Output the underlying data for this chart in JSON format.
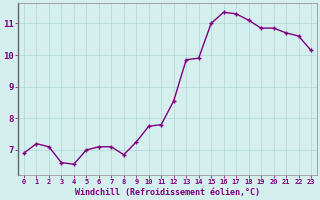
{
  "x": [
    0,
    1,
    2,
    3,
    4,
    5,
    6,
    7,
    8,
    9,
    10,
    11,
    12,
    13,
    14,
    15,
    16,
    17,
    18,
    19,
    20,
    21,
    22,
    23
  ],
  "y": [
    6.9,
    7.2,
    7.1,
    6.6,
    6.55,
    7.0,
    7.1,
    7.1,
    6.85,
    7.25,
    7.75,
    7.8,
    8.55,
    9.85,
    9.9,
    11.0,
    11.35,
    11.3,
    11.1,
    10.85,
    10.85,
    10.7,
    10.6,
    10.15
  ],
  "line_color": "#800080",
  "marker": "+",
  "marker_size": 3,
  "bg_color": "#d4efed",
  "grid_color": "#b0d8d4",
  "xlabel": "Windchill (Refroidissement éolien,°C)",
  "xlabel_color": "#800080",
  "ylabel_ticks": [
    7,
    8,
    9,
    10,
    11
  ],
  "xtick_labels": [
    "0",
    "1",
    "2",
    "3",
    "4",
    "5",
    "6",
    "7",
    "8",
    "9",
    "10",
    "11",
    "12",
    "13",
    "14",
    "15",
    "16",
    "17",
    "18",
    "19",
    "20",
    "21",
    "22",
    "23"
  ],
  "ylim": [
    6.2,
    11.65
  ],
  "xlim": [
    -0.5,
    23.5
  ],
  "tick_color": "#800080",
  "spine_color": "#888888",
  "left_spine_color": "#666666",
  "line_width": 1.0
}
